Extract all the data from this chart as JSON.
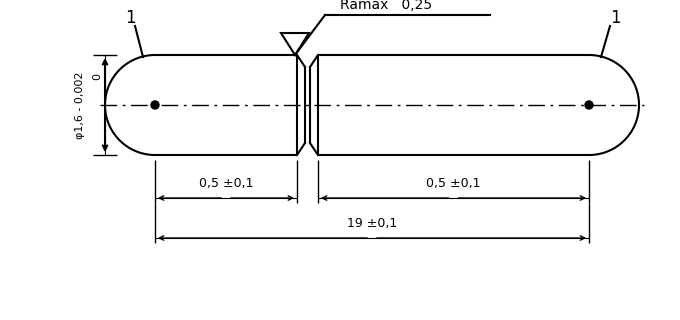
{
  "bg_color": "#ffffff",
  "line_color": "#000000",
  "fig_width": 6.8,
  "fig_height": 3.2,
  "dpi": 100,
  "ramax_text": "Ramax   0,25",
  "dim_dia_text1": "φ1,6 - 0,002",
  "dim_dia_text2": "0",
  "dim_arrow1_text": "0,5 ±0,1",
  "dim_arrow2_text": "0,5 ±0,1",
  "dim_arrow3_text": "19 ±0,1"
}
